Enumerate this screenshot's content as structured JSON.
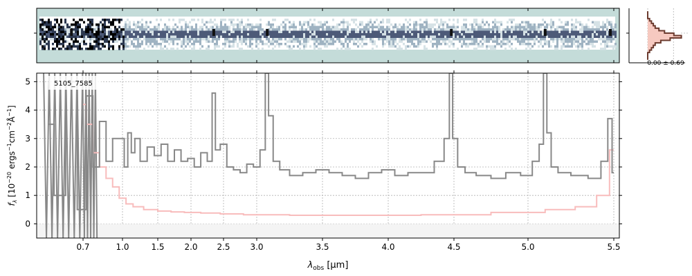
{
  "figure": {
    "object_label": "5105_7585",
    "side_label": "0.00 ± 0.69",
    "xlabel_lambda": "λ",
    "xlabel_sub": "obs",
    "xlabel_unit": " [μm]",
    "ylabel_f": "f",
    "ylabel_sub": "λ",
    "ylabel_rest": " [10",
    "ylabel_exp1": "−20",
    "ylabel_rest2": " ergs",
    "ylabel_exp2": "−1",
    "ylabel_rest3": "cm",
    "ylabel_exp3": "−2",
    "ylabel_rest4": "Å",
    "ylabel_exp4": "−1",
    "ylabel_end": "]"
  },
  "colors": {
    "background_2d": "#c4dcd9",
    "data": "#888888",
    "error": "#f8bcbc",
    "profile": "#6b3a2e",
    "profile_fill": "#f6c9c0",
    "grid": "#b0b0b0"
  },
  "chart_data": [
    {
      "type": "line",
      "title": "",
      "xlabel": "λobs [μm]",
      "ylabel": "fλ [10^-20 ergs^-1 cm^-2 Å^-1]",
      "xlim": [
        0.5,
        5.5
      ],
      "ylim": [
        -0.5,
        5.3
      ],
      "x_scale": "nonlinear (prism dispersion)",
      "x_ticks": [
        0.7,
        1.0,
        1.5,
        2.0,
        2.5,
        3.0,
        3.5,
        4.0,
        4.5,
        5.0,
        5.5
      ],
      "x_tick_labels": [
        "0.7",
        "1.0",
        "1.5",
        "2.0",
        "2.5",
        "3.0",
        "3.5",
        "4.0",
        "4.5",
        "5.0",
        "5.5"
      ],
      "y_ticks": [
        0,
        1,
        2,
        3,
        4,
        5
      ],
      "grid": true,
      "series": [
        {
          "role": "flux",
          "style": "steps",
          "x": [
            0.55,
            0.6,
            0.65,
            0.7,
            0.75,
            0.8,
            0.85,
            0.9,
            0.95,
            1.0,
            1.05,
            1.1,
            1.15,
            1.2,
            1.3,
            1.4,
            1.5,
            1.6,
            1.7,
            1.8,
            1.9,
            2.0,
            2.1,
            2.2,
            2.3,
            2.35,
            2.4,
            2.5,
            2.6,
            2.7,
            2.8,
            2.9,
            3.0,
            3.05,
            3.08,
            3.1,
            3.15,
            3.2,
            3.3,
            3.4,
            3.5,
            3.6,
            3.7,
            3.8,
            3.9,
            4.0,
            4.1,
            4.2,
            4.3,
            4.4,
            4.45,
            4.48,
            4.5,
            4.55,
            4.6,
            4.7,
            4.8,
            4.9,
            5.0,
            5.05,
            5.08,
            5.1,
            5.12,
            5.15,
            5.2,
            5.3,
            5.4,
            5.45,
            5.48,
            5.5
          ],
          "y": [
            3.5,
            1.0,
            5.0,
            0.5,
            4.5,
            2.0,
            3.6,
            2.2,
            3.0,
            3.0,
            2.0,
            3.2,
            2.5,
            3.0,
            2.2,
            2.7,
            2.4,
            2.8,
            2.2,
            2.6,
            2.2,
            2.3,
            2.0,
            2.5,
            2.2,
            4.6,
            2.6,
            2.8,
            2.0,
            1.9,
            1.8,
            2.1,
            2.0,
            2.6,
            5.3,
            3.8,
            2.2,
            1.9,
            1.7,
            1.8,
            1.9,
            1.8,
            1.7,
            1.6,
            1.8,
            1.9,
            1.7,
            1.8,
            1.8,
            2.2,
            3.0,
            5.3,
            3.0,
            2.0,
            1.8,
            1.7,
            1.6,
            1.8,
            1.7,
            2.2,
            2.8,
            5.3,
            3.2,
            2.0,
            1.8,
            1.7,
            1.6,
            2.2,
            3.7,
            1.8
          ]
        },
        {
          "role": "error",
          "style": "steps",
          "x": [
            0.7,
            0.75,
            0.8,
            0.85,
            0.9,
            0.95,
            1.0,
            1.1,
            1.2,
            1.4,
            1.6,
            1.8,
            2.0,
            2.3,
            2.6,
            3.0,
            3.5,
            4.0,
            4.5,
            5.0,
            5.2,
            5.35,
            5.45,
            5.5
          ],
          "y": [
            4.2,
            3.5,
            2.5,
            2.0,
            1.6,
            1.3,
            0.9,
            0.7,
            0.6,
            0.5,
            0.45,
            0.42,
            0.4,
            0.38,
            0.35,
            0.32,
            0.3,
            0.3,
            0.32,
            0.4,
            0.5,
            0.6,
            1.0,
            2.6
          ]
        }
      ]
    },
    {
      "type": "heatmap",
      "xlim": [
        0.5,
        5.5
      ],
      "ticks": [
        0.7,
        1.0,
        1.5,
        2.0,
        2.5,
        3.0,
        3.5,
        4.0,
        4.5,
        5.0,
        5.5
      ],
      "bright_features_x": [
        0.65,
        2.35,
        3.08,
        4.48,
        5.1,
        5.48
      ]
    },
    {
      "type": "line",
      "role": "spatial-profile",
      "xlim": [
        -0.5,
        1.0
      ],
      "annotation": "0.00 ± 0.69",
      "rows": [
        0,
        1,
        2,
        3,
        4,
        5,
        6,
        7,
        8,
        9,
        10,
        11,
        12,
        13,
        14,
        15,
        16,
        17,
        18,
        19
      ],
      "values": [
        0.0,
        0.0,
        0.0,
        0.05,
        0.1,
        0.15,
        0.2,
        0.3,
        0.45,
        0.7,
        0.9,
        0.6,
        0.35,
        0.2,
        0.15,
        0.1,
        0.05,
        0.0,
        0.0,
        0.0
      ]
    }
  ]
}
